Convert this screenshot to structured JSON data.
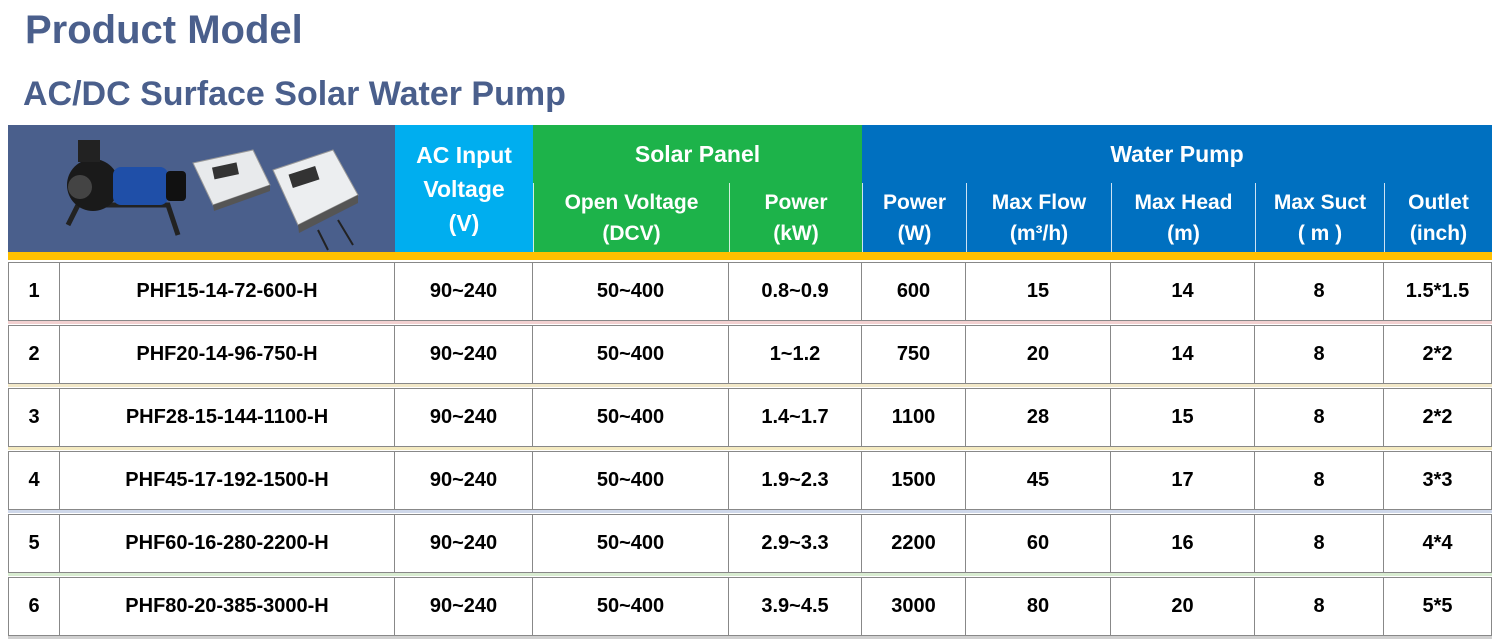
{
  "header": {
    "title": "Product Model",
    "subtitle": "AC/DC Surface Solar Water Pump"
  },
  "table": {
    "groups": [
      "AC Input\nVoltage\n(V)",
      "Solar Panel",
      "Water Pump"
    ],
    "columns": [
      "Open Voltage\n(DCV)",
      "Power\n(kW)",
      "Power\n(W)",
      "Max Flow\n(m³/h)",
      "Max Head\n(m)",
      "Max Suct\n( m )",
      "Outlet\n(inch)"
    ],
    "rows": [
      [
        "1",
        "PHF15-14-72-600-H",
        "90~240",
        "50~400",
        "0.8~0.9",
        "600",
        "15",
        "14",
        "8",
        "1.5*1.5"
      ],
      [
        "2",
        "PHF20-14-96-750-H",
        "90~240",
        "50~400",
        "1~1.2",
        "750",
        "20",
        "14",
        "8",
        "2*2"
      ],
      [
        "3",
        "PHF28-15-144-1100-H",
        "90~240",
        "50~400",
        "1.4~1.7",
        "1100",
        "28",
        "15",
        "8",
        "2*2"
      ],
      [
        "4",
        "PHF45-17-192-1500-H",
        "90~240",
        "50~400",
        "1.9~2.3",
        "1500",
        "45",
        "17",
        "8",
        "3*3"
      ],
      [
        "5",
        "PHF60-16-280-2200-H",
        "90~240",
        "50~400",
        "2.9~3.3",
        "2200",
        "60",
        "16",
        "8",
        "4*4"
      ],
      [
        "6",
        "PHF80-20-385-3000-H",
        "90~240",
        "50~400",
        "3.9~4.5",
        "3000",
        "80",
        "20",
        "8",
        "5*5"
      ]
    ]
  }
}
